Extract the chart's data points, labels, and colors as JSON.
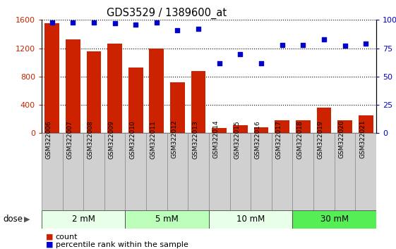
{
  "title": "GDS3529 / 1389600_at",
  "samples": [
    "GSM322006",
    "GSM322007",
    "GSM322008",
    "GSM322009",
    "GSM322010",
    "GSM322011",
    "GSM322012",
    "GSM322013",
    "GSM322014",
    "GSM322015",
    "GSM322016",
    "GSM322017",
    "GSM322018",
    "GSM322019",
    "GSM322020",
    "GSM322021"
  ],
  "counts": [
    1550,
    1330,
    1160,
    1270,
    930,
    1200,
    720,
    880,
    75,
    115,
    80,
    185,
    185,
    360,
    185,
    255
  ],
  "percentiles": [
    98,
    98,
    98,
    97,
    96,
    98,
    91,
    92,
    62,
    70,
    62,
    78,
    78,
    83,
    77,
    79
  ],
  "doses": [
    {
      "label": "2 mM",
      "start": 0,
      "end": 4,
      "color": "#e8ffe8"
    },
    {
      "label": "5 mM",
      "start": 4,
      "end": 8,
      "color": "#bbffbb"
    },
    {
      "label": "10 mM",
      "start": 8,
      "end": 12,
      "color": "#e8ffe8"
    },
    {
      "label": "30 mM",
      "start": 12,
      "end": 16,
      "color": "#55ee55"
    }
  ],
  "bar_color": "#cc2200",
  "dot_color": "#0000cc",
  "ylim_left": [
    0,
    1600
  ],
  "ylim_right": [
    0,
    100
  ],
  "yticks_left": [
    0,
    400,
    800,
    1200,
    1600
  ],
  "yticks_right": [
    0,
    25,
    50,
    75,
    100
  ],
  "ytick_labels_right": [
    "0",
    "25",
    "50",
    "75",
    "100%"
  ],
  "legend_count_label": "count",
  "legend_pct_label": "percentile rank within the sample",
  "xlabel_dose": "dose",
  "sample_box_color": "#d0d0d0",
  "sample_box_border": "#888888"
}
